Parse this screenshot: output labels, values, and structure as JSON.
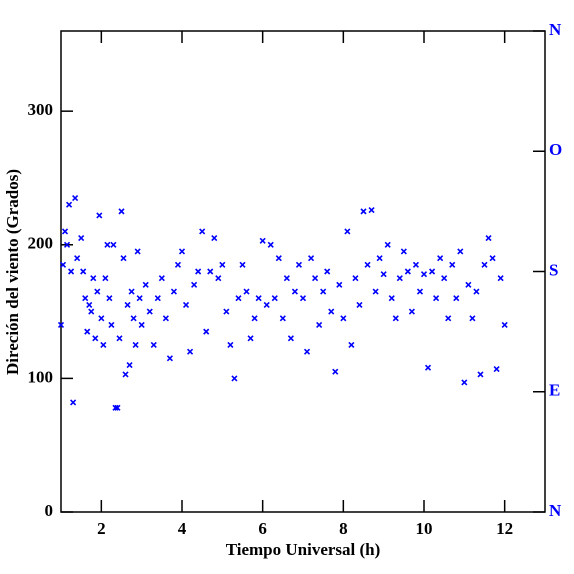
{
  "chart_data": {
    "type": "scatter",
    "xlabel": "Tiempo Universal (h)",
    "ylabel": "Direción del viento (Grados)",
    "xlim": [
      1,
      13
    ],
    "ylim": [
      0,
      360
    ],
    "y2lim": [
      0,
      360
    ],
    "xticks": [
      2,
      4,
      6,
      8,
      10,
      12
    ],
    "yticks": [
      0,
      100,
      200,
      300
    ],
    "y2ticks": [
      {
        "value": 0,
        "label": "N"
      },
      {
        "value": 90,
        "label": "E"
      },
      {
        "value": 180,
        "label": "S"
      },
      {
        "value": 270,
        "label": "O"
      },
      {
        "value": 360,
        "label": "N"
      }
    ],
    "color": "#0000ff",
    "y2color": "#0000ff",
    "x": [
      1.0,
      1.05,
      1.1,
      1.15,
      1.2,
      1.25,
      1.3,
      1.35,
      1.4,
      1.5,
      1.55,
      1.6,
      1.65,
      1.7,
      1.75,
      1.8,
      1.85,
      1.9,
      1.95,
      2.0,
      2.05,
      2.1,
      2.15,
      2.2,
      2.25,
      2.3,
      2.35,
      2.4,
      2.45,
      2.5,
      2.55,
      2.6,
      2.65,
      2.7,
      2.75,
      2.8,
      2.85,
      2.9,
      2.95,
      3.0,
      3.1,
      3.2,
      3.3,
      3.4,
      3.5,
      3.6,
      3.7,
      3.8,
      3.9,
      4.0,
      4.1,
      4.2,
      4.3,
      4.4,
      4.5,
      4.6,
      4.7,
      4.8,
      4.9,
      5.0,
      5.1,
      5.2,
      5.3,
      5.4,
      5.5,
      5.6,
      5.7,
      5.8,
      5.9,
      6.0,
      6.1,
      6.2,
      6.3,
      6.4,
      6.5,
      6.6,
      6.7,
      6.8,
      6.9,
      7.0,
      7.1,
      7.2,
      7.3,
      7.4,
      7.5,
      7.6,
      7.7,
      7.8,
      7.9,
      8.0,
      8.1,
      8.2,
      8.3,
      8.4,
      8.5,
      8.6,
      8.7,
      8.8,
      8.9,
      9.0,
      9.1,
      9.2,
      9.3,
      9.4,
      9.5,
      9.6,
      9.7,
      9.8,
      9.9,
      10.0,
      10.1,
      10.2,
      10.3,
      10.4,
      10.5,
      10.6,
      10.7,
      10.8,
      10.9,
      11.0,
      11.1,
      11.2,
      11.3,
      11.4,
      11.5,
      11.6,
      11.7,
      11.8,
      11.9,
      12.0
    ],
    "values": [
      140,
      185,
      210,
      200,
      230,
      180,
      82,
      235,
      190,
      205,
      180,
      160,
      135,
      155,
      150,
      175,
      130,
      165,
      222,
      145,
      125,
      175,
      200,
      160,
      140,
      200,
      78,
      78,
      130,
      225,
      190,
      103,
      155,
      110,
      165,
      145,
      125,
      195,
      160,
      140,
      170,
      150,
      125,
      160,
      175,
      145,
      115,
      165,
      185,
      195,
      155,
      120,
      170,
      180,
      210,
      135,
      180,
      205,
      175,
      185,
      150,
      125,
      100,
      160,
      185,
      165,
      130,
      145,
      160,
      203,
      155,
      200,
      160,
      190,
      145,
      175,
      130,
      165,
      185,
      160,
      120,
      190,
      175,
      140,
      165,
      180,
      150,
      105,
      170,
      145,
      210,
      125,
      175,
      155,
      225,
      185,
      226,
      165,
      190,
      178,
      200,
      160,
      145,
      175,
      195,
      180,
      150,
      185,
      165,
      178,
      108,
      180,
      160,
      190,
      175,
      145,
      185,
      160,
      195,
      97,
      170,
      145,
      165,
      103,
      185,
      205,
      190,
      107,
      175,
      140
    ]
  }
}
